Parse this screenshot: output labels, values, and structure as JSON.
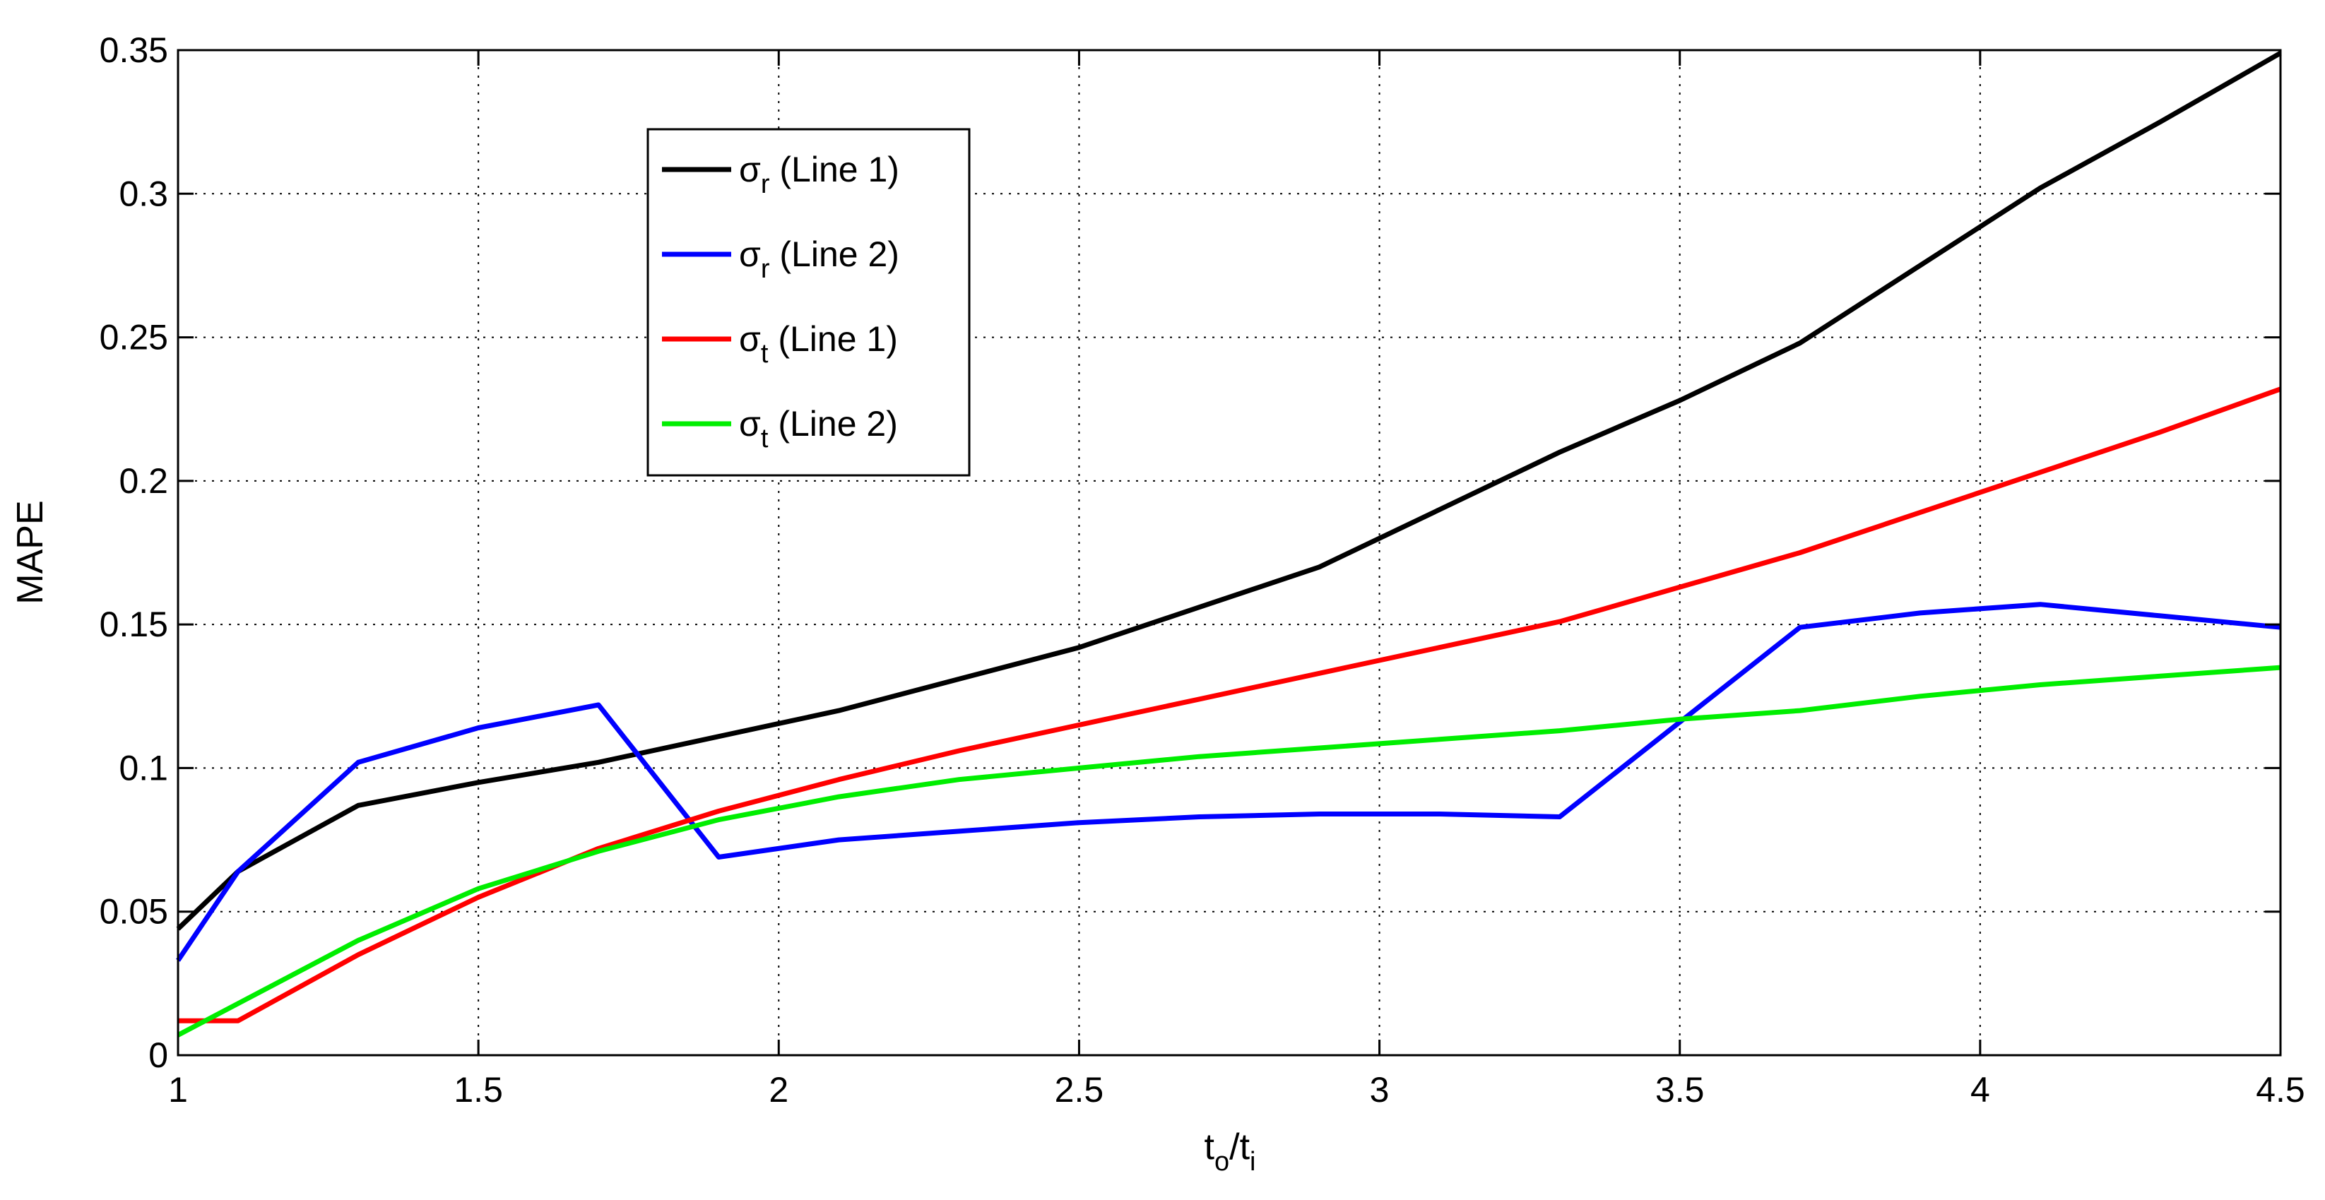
{
  "chart_data": {
    "type": "line",
    "xlabel": {
      "main": "t",
      "sub": "o",
      "slash": "/",
      "main2": "t",
      "sub2": "i"
    },
    "ylabel": "MAPE",
    "xlim": [
      1,
      4.5
    ],
    "ylim": [
      0,
      0.35
    ],
    "xticks": [
      1,
      1.5,
      2,
      2.5,
      3,
      3.5,
      4,
      4.5
    ],
    "xtick_labels": [
      "1",
      "1.5",
      "2",
      "2.5",
      "3",
      "3.5",
      "4",
      "4.5"
    ],
    "yticks": [
      0,
      0.05,
      0.1,
      0.15,
      0.2,
      0.25,
      0.3,
      0.35
    ],
    "ytick_labels": [
      "0",
      "0.05",
      "0.1",
      "0.15",
      "0.2",
      "0.25",
      "0.3",
      "0.35"
    ],
    "grid": true,
    "legend_position": "upper-left-center",
    "series": [
      {
        "name": "σ_r (Line 1)",
        "symbol": "σ",
        "subscript": "r",
        "label_suffix": " (Line 1)",
        "color": "#000000",
        "x": [
          1,
          1.1,
          1.3,
          1.5,
          1.7,
          1.9,
          2.1,
          2.3,
          2.5,
          2.7,
          2.9,
          3.1,
          3.3,
          3.5,
          3.7,
          3.9,
          4.1,
          4.3,
          4.5
        ],
        "y": [
          0.044,
          0.064,
          0.087,
          0.095,
          0.102,
          0.111,
          0.12,
          0.131,
          0.142,
          0.156,
          0.17,
          0.19,
          0.21,
          0.228,
          0.248,
          0.275,
          0.302,
          0.325,
          0.349
        ]
      },
      {
        "name": "σ_r (Line 2)",
        "symbol": "σ",
        "subscript": "r",
        "label_suffix": " (Line 2)",
        "color": "#0000ff",
        "x": [
          1,
          1.1,
          1.3,
          1.5,
          1.7,
          1.9,
          2.1,
          2.3,
          2.5,
          2.7,
          2.9,
          3.1,
          3.3,
          3.5,
          3.7,
          3.9,
          4.1,
          4.3,
          4.5
        ],
        "y": [
          0.033,
          0.064,
          0.102,
          0.114,
          0.122,
          0.069,
          0.075,
          0.078,
          0.081,
          0.083,
          0.084,
          0.084,
          0.083,
          0.116,
          0.149,
          0.154,
          0.157,
          0.153,
          0.149
        ]
      },
      {
        "name": "σ_t (Line 1)",
        "symbol": "σ",
        "subscript": "t",
        "label_suffix": " (Line 1)",
        "color": "#ff0000",
        "x": [
          1,
          1.1,
          1.3,
          1.5,
          1.7,
          1.9,
          2.1,
          2.3,
          2.5,
          2.7,
          2.9,
          3.1,
          3.3,
          3.5,
          3.7,
          3.9,
          4.1,
          4.3,
          4.5
        ],
        "y": [
          0.012,
          0.012,
          0.035,
          0.055,
          0.072,
          0.085,
          0.096,
          0.106,
          0.115,
          0.124,
          0.133,
          0.142,
          0.151,
          0.163,
          0.175,
          0.189,
          0.203,
          0.217,
          0.232
        ]
      },
      {
        "name": "σ_t (Line 2)",
        "symbol": "σ",
        "subscript": "t",
        "label_suffix": " (Line 2)",
        "color": "#00ee00",
        "x": [
          1,
          1.1,
          1.3,
          1.5,
          1.7,
          1.9,
          2.1,
          2.3,
          2.5,
          2.7,
          2.9,
          3.1,
          3.3,
          3.5,
          3.7,
          3.9,
          4.1,
          4.3,
          4.5
        ],
        "y": [
          0.007,
          0.018,
          0.04,
          0.058,
          0.071,
          0.082,
          0.09,
          0.096,
          0.1,
          0.104,
          0.107,
          0.11,
          0.113,
          0.117,
          0.12,
          0.125,
          0.129,
          0.132,
          0.135
        ]
      }
    ]
  }
}
